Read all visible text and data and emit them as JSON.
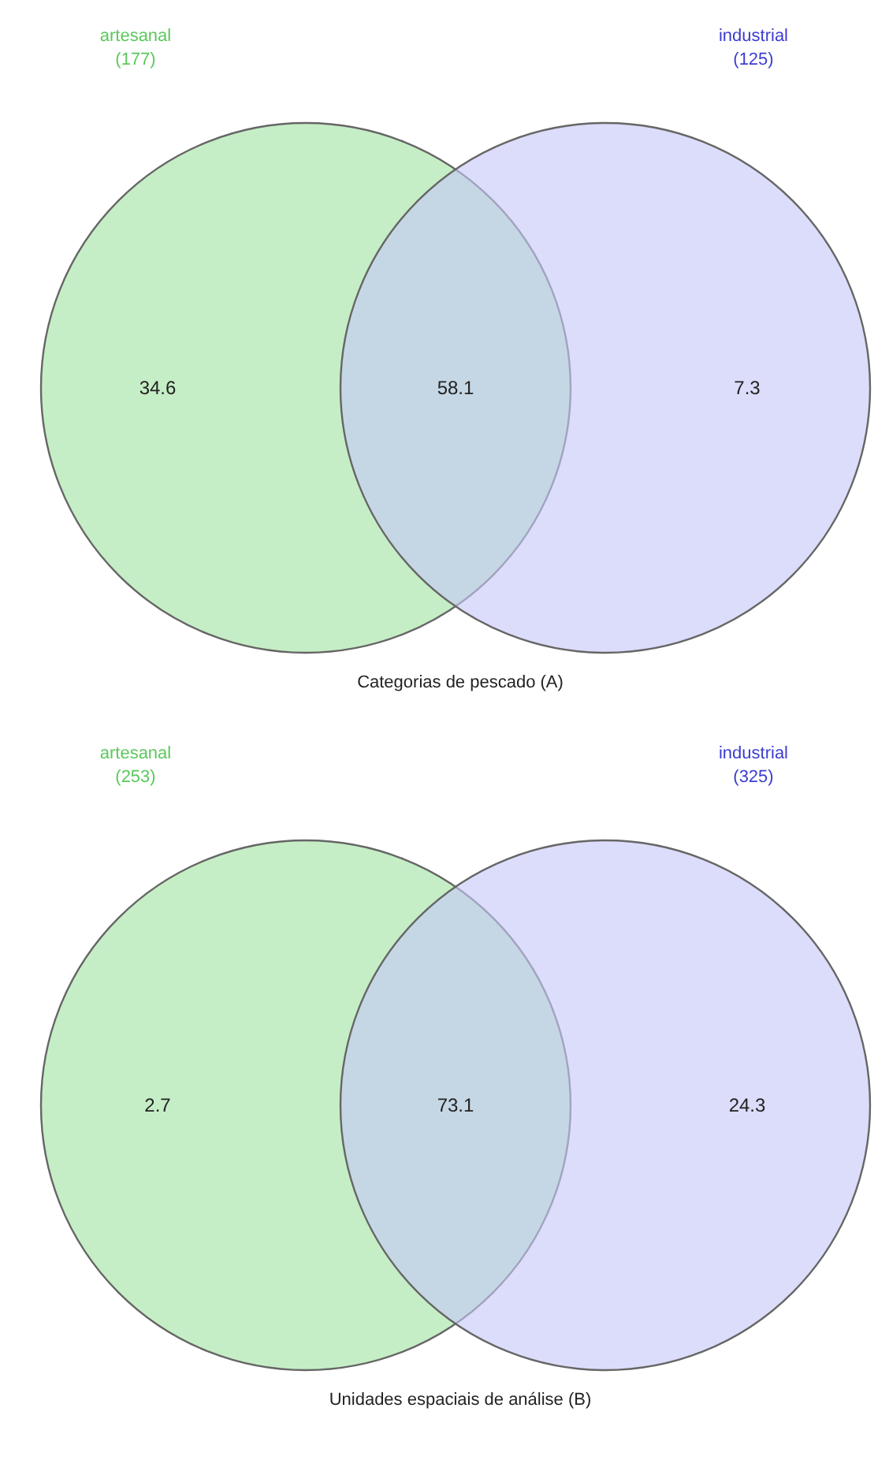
{
  "chart_data": [
    {
      "type": "other",
      "title": "Categorias de pescado (A)",
      "categories": [
        "artesanal",
        null,
        "industrial"
      ],
      "values": [
        34.6,
        58.1,
        7.3
      ],
      "data_labels": true,
      "colors": [
        "#c6eec6",
        null,
        "#c5c8f7"
      ],
      "annotations": [
        "(177)",
        "(125)"
      ]
    },
    {
      "type": "other",
      "title": "Unidades espaciais de análise (B)",
      "categories": [
        "artesanal",
        null,
        "industrial"
      ],
      "values": [
        2.7,
        73.1,
        24.3
      ],
      "data_labels": true,
      "colors": [
        "#c6eec6",
        null,
        "#c5c8f7"
      ],
      "annotations": [
        "(253)",
        "(325)"
      ]
    }
  ]
}
